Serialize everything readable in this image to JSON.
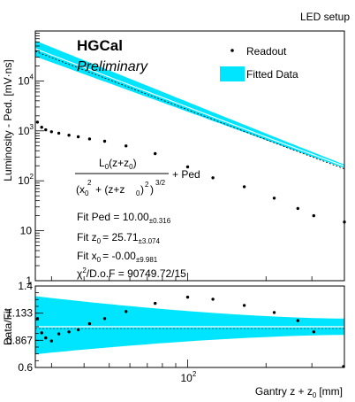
{
  "header": {
    "setup_label": "LED setup"
  },
  "brand": {
    "experiment": "HGCal",
    "status": "Preliminary"
  },
  "legend": {
    "readout": "Readout",
    "fitted": "Fitted Data",
    "placement": "top-right"
  },
  "formula": {
    "num": "L",
    "num_sub": "0",
    "num_rest": "(z+z",
    "num_rest_sub": "0",
    "num_close": ")",
    "den_open": "(x",
    "den_x_sub": "0",
    "den_x_sup": "2",
    "den_mid": "+ (z+z",
    "den_mid_sub": "0",
    "den_mid_close": ")",
    "den_mid_sup": "2",
    "den_close": ")",
    "den_sup": "3/2",
    "plus_ped": "+ Ped"
  },
  "fit": {
    "ped_label": "Fit Ped = 10.00",
    "ped_err": "±0.316",
    "z0_prefix": "Fit z",
    "z0_sub": "0",
    "z0_value": "= 25.71",
    "z0_err": "±3.074",
    "x0_prefix": "Fit x",
    "x0_sub": "0",
    "x0_value": "= -0.00",
    "x0_err": "±9.981",
    "chi2_prefix": "χ",
    "chi2_sup": "2",
    "chi2_value": "/D.o.F = 90749.72/15"
  },
  "chart_data": [
    {
      "type": "scatter",
      "xscale": "log",
      "yscale": "log",
      "ylabel": "Luminosity - Ped. [mV·ns]",
      "xlim": [
        26,
        400
      ],
      "ylim": [
        1,
        100000
      ],
      "y_ticks": [
        {
          "value": 1,
          "base": "1",
          "exp": ""
        },
        {
          "value": 10,
          "base": "10",
          "exp": ""
        },
        {
          "value": 100,
          "base": "10",
          "exp": "2"
        },
        {
          "value": 1000,
          "base": "10",
          "exp": "3"
        },
        {
          "value": 10000,
          "base": "10",
          "exp": "4"
        }
      ],
      "series": [
        {
          "name": "Readout",
          "x": [
            26.5,
            27.5,
            28.5,
            30,
            32,
            35,
            38,
            42,
            48,
            58,
            75,
            100,
            125,
            165,
            215,
            265,
            305,
            400
          ],
          "y": [
            1500,
            1180,
            1050,
            960,
            900,
            820,
            760,
            690,
            620,
            500,
            350,
            190,
            115,
            76,
            45,
            28,
            20,
            15
          ]
        }
      ],
      "fit_curve": {
        "ped": 10.0,
        "z0": 25.71,
        "x0": 0.0,
        "L0_scale": 1600
      },
      "fit_band": {
        "rel_lo": 0.7,
        "rel_hi": 1.45
      }
    },
    {
      "type": "scatter",
      "xscale": "log",
      "xlabel_base": "Gantry z + z",
      "xlabel_sub": "0",
      "xlabel_unit": "[mm]",
      "ylabel": "Data/Fit",
      "xlim": [
        26,
        400
      ],
      "ylim": [
        0.6,
        1.4
      ],
      "y_ticks": [
        {
          "value": 0.6,
          "label": "0.6"
        },
        {
          "value": 0.867,
          "label": "0.867"
        },
        {
          "value": 1.133,
          "label": "1.133"
        },
        {
          "value": 1.4,
          "label": "1.4"
        }
      ],
      "x_ticks": [
        {
          "value": 100,
          "base": "10",
          "exp": "2"
        }
      ],
      "series": [
        {
          "name": "Data/Fit",
          "x": [
            26.5,
            27.5,
            28.5,
            30,
            32,
            35,
            38,
            42,
            48,
            58,
            75,
            100,
            125,
            165,
            215,
            265,
            305,
            400
          ],
          "y": [
            1.08,
            0.94,
            0.89,
            0.86,
            0.93,
            0.95,
            0.97,
            1.03,
            1.08,
            1.15,
            1.23,
            1.29,
            1.27,
            1.21,
            1.14,
            1.06,
            0.95,
            0.61
          ]
        }
      ],
      "band": {
        "x": [
          26,
          400
        ],
        "lo": [
          0.73,
          0.92
        ],
        "hi": [
          1.3,
          1.08
        ]
      }
    }
  ]
}
